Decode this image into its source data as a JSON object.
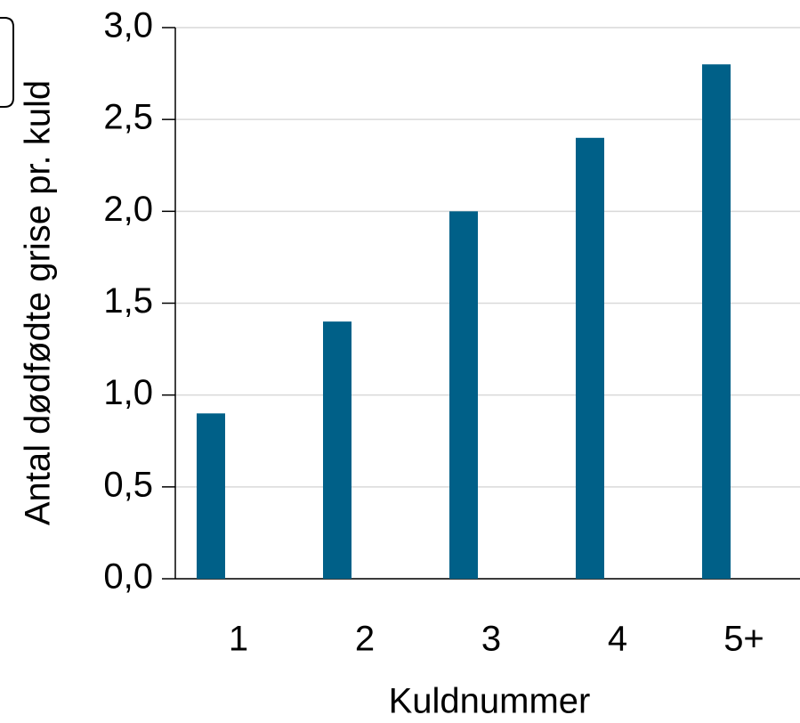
{
  "chart_data": {
    "type": "bar",
    "y_label": "Antal dødfødte grise pr. kuld",
    "x_label": "Kuldnummer",
    "categories": [
      "1",
      "2",
      "3",
      "4",
      "5+"
    ],
    "values": [
      0.9,
      1.4,
      2.0,
      2.4,
      2.8
    ],
    "color": "#006088",
    "ylim": [
      0,
      3.0
    ],
    "yticks": [
      {
        "value": 0,
        "label": "0,0"
      },
      {
        "value": 0.5,
        "label": "0,5"
      },
      {
        "value": 1.0,
        "label": "1,0"
      },
      {
        "value": 1.5,
        "label": "1,5"
      },
      {
        "value": 2.0,
        "label": "2,0"
      },
      {
        "value": 2.5,
        "label": "2,5"
      },
      {
        "value": 3.0,
        "label": "3,0"
      }
    ],
    "grid": true
  }
}
